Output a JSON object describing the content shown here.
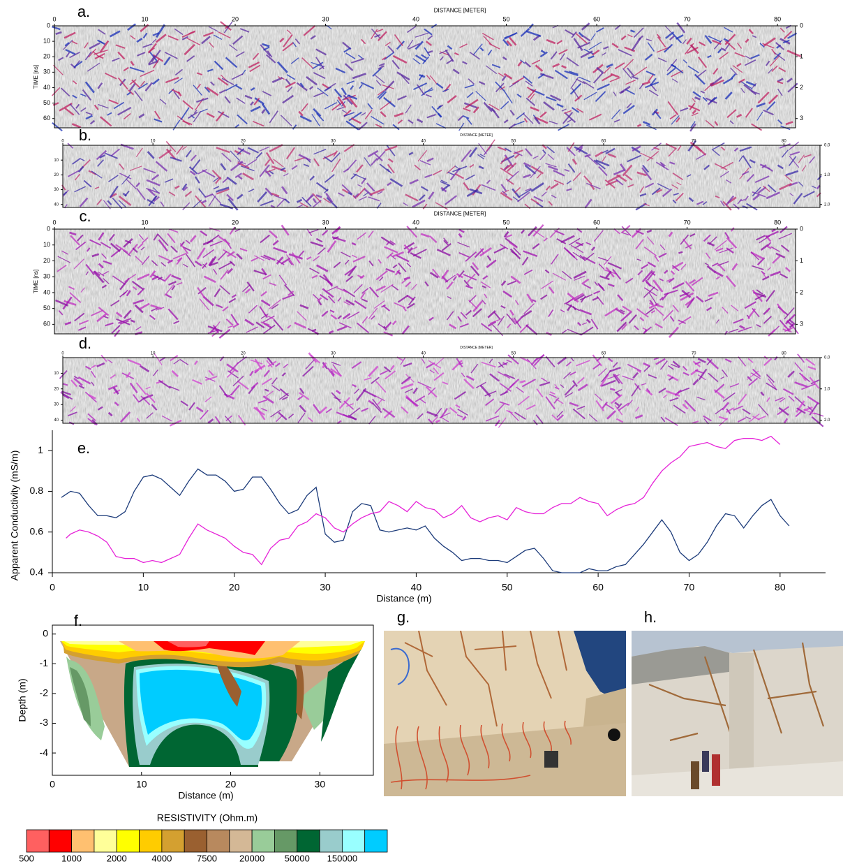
{
  "chart_data": [
    {
      "type": "radargram",
      "label": "a.",
      "x_label": "DISTANCE [METER]",
      "y_label": "TIME [ns]",
      "xlim": [
        0,
        82
      ],
      "xticks": [
        0,
        10,
        20,
        30,
        40,
        50,
        60,
        70,
        80
      ],
      "ylim": [
        0,
        66
      ],
      "yticks": [
        0,
        10,
        20,
        30,
        40,
        50,
        60
      ],
      "y2lim": [
        0,
        3.3
      ],
      "y2ticks": [
        0,
        1,
        2,
        3
      ],
      "colors": [
        "#1a2fb8",
        "#c02060",
        "#5a2aa0"
      ]
    },
    {
      "type": "radargram",
      "label": "b.",
      "x_label": "DISTANCE [METER]",
      "xlim": [
        0,
        84
      ],
      "xticks": [
        0,
        10,
        20,
        30,
        40,
        50,
        60,
        70,
        80
      ],
      "ylim": [
        0,
        42
      ],
      "yticks": [
        10,
        20,
        30,
        40
      ],
      "y2lim": [
        0,
        2.1
      ],
      "y2ticks": [
        {
          "value": 0,
          "label": "0.0"
        },
        {
          "value": 1,
          "label": "1.0"
        },
        {
          "value": 2,
          "label": "2.0"
        }
      ],
      "colors": [
        "#3a2aa8",
        "#7a30b0",
        "#c03070"
      ]
    },
    {
      "type": "radargram",
      "label": "c.",
      "x_label": "DISTANCE [METER]",
      "y_label": "TIME [ns]",
      "xlim": [
        0,
        82
      ],
      "xticks": [
        0,
        10,
        20,
        30,
        40,
        50,
        60,
        70,
        80
      ],
      "ylim": [
        0,
        66
      ],
      "yticks": [
        0,
        10,
        20,
        30,
        40,
        50,
        60
      ],
      "y2lim": [
        0,
        3.3
      ],
      "y2ticks": [
        0,
        1,
        2,
        3
      ],
      "colors": [
        "#a010b0",
        "#8a0aa0",
        "#c030c0"
      ]
    },
    {
      "type": "radargram",
      "label": "d.",
      "x_label": "DISTANCE [METER]",
      "xlim": [
        0,
        84
      ],
      "xticks": [
        0,
        10,
        20,
        30,
        40,
        50,
        60,
        70,
        80
      ],
      "ylim": [
        0,
        42
      ],
      "yticks": [
        10,
        20,
        30,
        40
      ],
      "y2lim": [
        0,
        2.1
      ],
      "y2ticks": [
        {
          "value": 0,
          "label": "0.0"
        },
        {
          "value": 1,
          "label": "1.0"
        },
        {
          "value": 2,
          "label": "2.0"
        }
      ],
      "colors": [
        "#b020c0",
        "#8a10a8",
        "#d040d0"
      ]
    },
    {
      "type": "line",
      "label": "e.",
      "x_label": "Distance (m)",
      "y_label": "Apparent Conductivity (mS/m)",
      "xlim": [
        0,
        85
      ],
      "xticks": [
        0,
        10,
        20,
        30,
        40,
        50,
        60,
        70,
        80
      ],
      "ylim": [
        0.4,
        1.1
      ],
      "yticks": [
        0.4,
        0.6,
        0.8,
        1
      ],
      "series": [
        {
          "color": "#1c3b7a",
          "x": [
            1,
            2,
            3,
            4,
            5,
            6,
            7,
            8,
            9,
            10,
            11,
            12,
            13,
            14,
            15,
            16,
            17,
            18,
            19,
            20,
            21,
            22,
            23,
            24,
            25,
            26,
            27,
            28,
            29,
            30,
            31,
            32,
            33,
            34,
            35,
            36,
            37,
            38,
            39,
            40,
            41,
            42,
            43,
            44,
            45,
            46,
            47,
            48,
            49,
            50,
            51,
            52,
            53,
            54,
            55,
            56,
            57,
            58,
            59,
            60,
            61,
            62,
            63,
            64,
            65,
            66,
            67,
            68,
            69,
            70,
            71,
            72,
            73,
            74,
            75,
            76,
            77,
            78,
            79,
            80,
            81
          ],
          "values": [
            0.77,
            0.8,
            0.79,
            0.73,
            0.68,
            0.68,
            0.67,
            0.7,
            0.8,
            0.87,
            0.88,
            0.86,
            0.82,
            0.78,
            0.85,
            0.91,
            0.88,
            0.88,
            0.85,
            0.8,
            0.81,
            0.87,
            0.87,
            0.81,
            0.74,
            0.69,
            0.71,
            0.78,
            0.82,
            0.59,
            0.55,
            0.56,
            0.7,
            0.74,
            0.73,
            0.61,
            0.6,
            0.61,
            0.62,
            0.61,
            0.63,
            0.57,
            0.53,
            0.5,
            0.46,
            0.47,
            0.47,
            0.46,
            0.46,
            0.45,
            0.48,
            0.51,
            0.52,
            0.47,
            0.41,
            0.4,
            0.4,
            0.4,
            0.42,
            0.41,
            0.41,
            0.43,
            0.44,
            0.49,
            0.54,
            0.6,
            0.66,
            0.6,
            0.5,
            0.46,
            0.49,
            0.55,
            0.63,
            0.69,
            0.68,
            0.62,
            0.68,
            0.73,
            0.76,
            0.68,
            0.63
          ]
        },
        {
          "color": "#e623d8",
          "x": [
            1.5,
            2,
            3,
            4,
            5,
            6,
            7,
            8,
            9,
            10,
            11,
            12,
            13,
            14,
            15,
            16,
            17,
            18,
            19,
            20,
            21,
            22,
            23,
            24,
            25,
            26,
            27,
            28,
            29,
            30,
            31,
            32,
            33,
            34,
            35,
            36,
            37,
            38,
            39,
            40,
            41,
            42,
            43,
            44,
            45,
            46,
            47,
            48,
            49,
            50,
            51,
            52,
            53,
            54,
            55,
            56,
            57,
            58,
            59,
            60,
            61,
            62,
            63,
            64,
            65,
            66,
            67,
            68,
            69,
            70,
            71,
            72,
            73,
            74,
            75,
            76,
            77,
            78,
            79,
            80
          ],
          "values": [
            0.57,
            0.59,
            0.61,
            0.6,
            0.58,
            0.55,
            0.48,
            0.47,
            0.47,
            0.45,
            0.46,
            0.45,
            0.47,
            0.49,
            0.57,
            0.64,
            0.61,
            0.59,
            0.57,
            0.53,
            0.5,
            0.49,
            0.44,
            0.52,
            0.56,
            0.57,
            0.63,
            0.65,
            0.69,
            0.67,
            0.62,
            0.6,
            0.64,
            0.67,
            0.69,
            0.7,
            0.75,
            0.73,
            0.7,
            0.75,
            0.72,
            0.71,
            0.67,
            0.69,
            0.73,
            0.67,
            0.65,
            0.67,
            0.68,
            0.66,
            0.72,
            0.7,
            0.69,
            0.69,
            0.72,
            0.74,
            0.74,
            0.77,
            0.75,
            0.74,
            0.68,
            0.71,
            0.73,
            0.74,
            0.77,
            0.84,
            0.9,
            0.94,
            0.97,
            1.02,
            1.03,
            1.04,
            1.02,
            1.01,
            1.05,
            1.06,
            1.06,
            1.05,
            1.07,
            1.03
          ]
        }
      ]
    },
    {
      "type": "contour",
      "label": "f.",
      "x_label": "Distance (m)",
      "y_label": "Depth (m)",
      "xlim": [
        0,
        36
      ],
      "xticks": [
        0,
        10,
        20,
        30
      ],
      "ylim": [
        -4.75,
        0.3
      ],
      "yticks": [
        0,
        -1,
        -2,
        -3,
        -4
      ],
      "colorbar": {
        "title": "RESISTIVITY (Ohm.m)",
        "colors": [
          "#ff6060",
          "#ff0000",
          "#ffc070",
          "#ffff99",
          "#ffff00",
          "#ffcc00",
          "#d4a030",
          "#9a6030",
          "#b8895e",
          "#d4b896",
          "#99cc99",
          "#669966",
          "#006633",
          "#99cccc",
          "#99ffff",
          "#00ccff"
        ],
        "labels": [
          500,
          1000,
          2000,
          4000,
          7500,
          20000,
          50000,
          150000
        ]
      }
    }
  ],
  "photos": [
    {
      "label": "g."
    },
    {
      "label": "h."
    }
  ]
}
